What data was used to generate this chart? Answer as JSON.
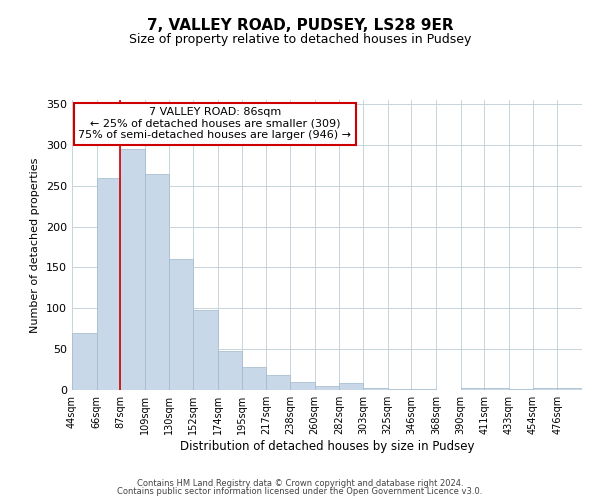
{
  "title": "7, VALLEY ROAD, PUDSEY, LS28 9ER",
  "subtitle": "Size of property relative to detached houses in Pudsey",
  "xlabel": "Distribution of detached houses by size in Pudsey",
  "ylabel": "Number of detached properties",
  "bin_labels": [
    "44sqm",
    "66sqm",
    "87sqm",
    "109sqm",
    "130sqm",
    "152sqm",
    "174sqm",
    "195sqm",
    "217sqm",
    "238sqm",
    "260sqm",
    "282sqm",
    "303sqm",
    "325sqm",
    "346sqm",
    "368sqm",
    "390sqm",
    "411sqm",
    "433sqm",
    "454sqm",
    "476sqm"
  ],
  "bin_edges": [
    44,
    66,
    87,
    109,
    130,
    152,
    174,
    195,
    217,
    238,
    260,
    282,
    303,
    325,
    346,
    368,
    390,
    411,
    433,
    454,
    476
  ],
  "bar_heights": [
    70,
    260,
    295,
    265,
    160,
    98,
    48,
    28,
    18,
    10,
    5,
    9,
    3,
    1,
    1,
    0,
    3,
    2,
    1,
    2,
    3
  ],
  "bar_color": "#c8d8e8",
  "bar_edgecolor": "#a0b8cc",
  "vline_x": 87,
  "vline_color": "#cc0000",
  "annotation_text": "7 VALLEY ROAD: 86sqm\n← 25% of detached houses are smaller (309)\n75% of semi-detached houses are larger (946) →",
  "annotation_box_color": "#ffffff",
  "annotation_box_edgecolor": "#cc0000",
  "ylim": [
    0,
    355
  ],
  "yticks": [
    0,
    50,
    100,
    150,
    200,
    250,
    300,
    350
  ],
  "footer_line1": "Contains HM Land Registry data © Crown copyright and database right 2024.",
  "footer_line2": "Contains public sector information licensed under the Open Government Licence v3.0.",
  "background_color": "#ffffff",
  "grid_color": "#c8d4dc"
}
